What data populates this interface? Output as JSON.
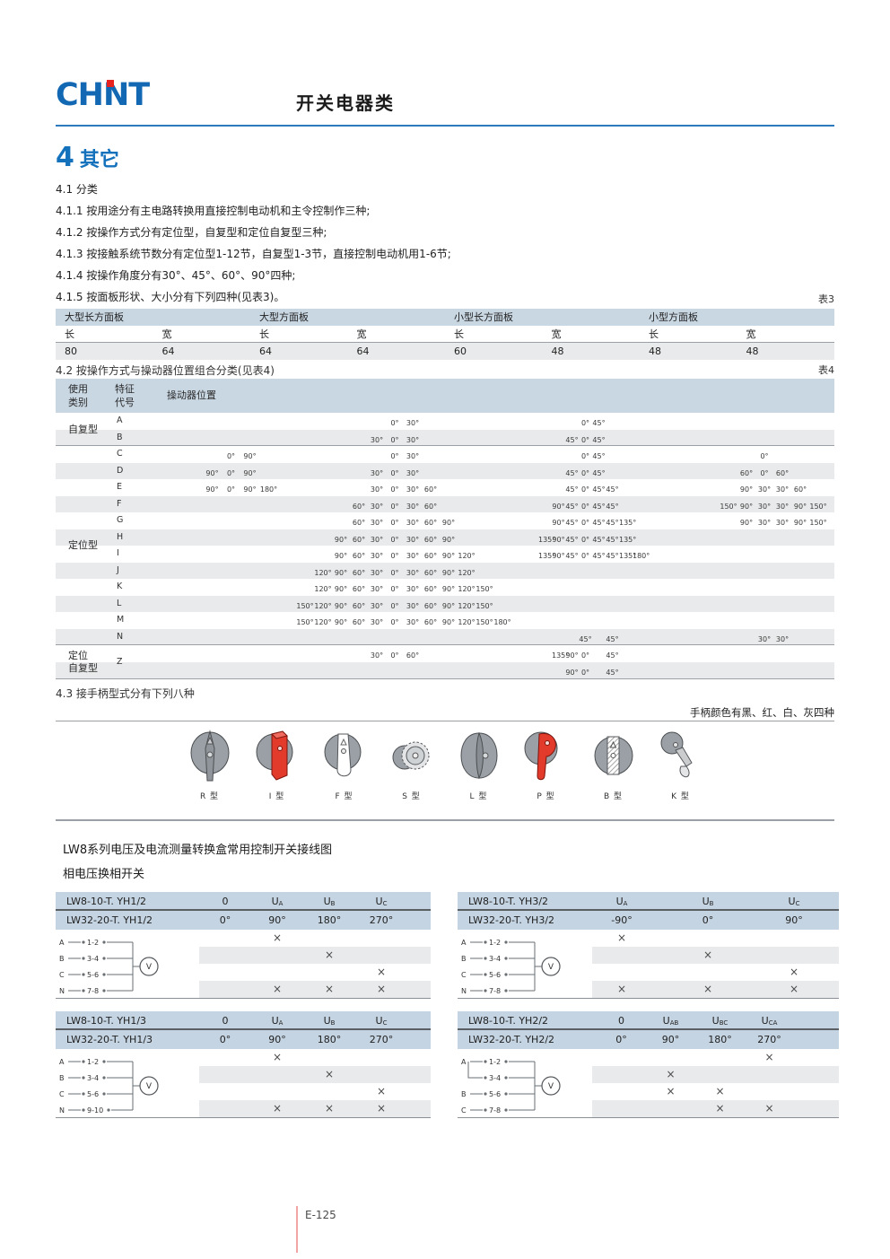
{
  "brand": {
    "logo_text": "CHNT"
  },
  "header": {
    "title": "开关电器类"
  },
  "section": {
    "number": "4",
    "title": "其它"
  },
  "intro": {
    "items": [
      "4.1 分类",
      "4.1.1 按用途分有主电路转换用直接控制电动机和主令控制作三种;",
      "4.1.2 按操作方式分有定位型，自复型和定位自复型三种;",
      "4.1.3 按接触系统节数分有定位型1-12节，自复型1-3节，直接控制电动机用1-6节;",
      "4.1.4 按操作角度分有30°、45°、60°、90°四种;",
      "4.1.5 按面板形状、大小分有下列四种(见表3)。"
    ]
  },
  "labels": {
    "table3_tag": "表3",
    "table4_tag": "表4",
    "sec42": "4.2 按操作方式与操动器位置组合分类(见表4)",
    "sec43": "4.3 接手柄型式分有下列八种",
    "handle_note": "手柄颜色有黑、红、白、灰四种",
    "lw8_title": "LW8系列电压及电流测量转换盒常用控制开关接线图",
    "lw8_sub": "相电压换相开关",
    "footer": "E-125"
  },
  "table3": {
    "panels": [
      "大型长方面板",
      "大型方面板",
      "小型长方面板",
      "小型方面板"
    ],
    "dims": [
      "长",
      "宽"
    ],
    "values": [
      "80",
      "64",
      "64",
      "64",
      "60",
      "48",
      "48",
      "48"
    ]
  },
  "table4": {
    "header": {
      "cat": [
        "使用",
        "类别"
      ],
      "code": [
        "特征",
        "代号"
      ],
      "pos": "操动器位置"
    },
    "rows": [
      {
        "code": "A",
        "g2": [
          "",
          "",
          "",
          "",
          "",
          "0°",
          "30°",
          "",
          "",
          "",
          "",
          ""
        ],
        "g3": [
          "",
          "",
          "",
          "0°",
          "45°",
          "",
          "",
          ""
        ]
      },
      {
        "code": "B",
        "g2": [
          "",
          "",
          "",
          "",
          "30°",
          "0°",
          "30°",
          "",
          "",
          "",
          "",
          ""
        ],
        "g3": [
          "",
          "",
          "45°",
          "0°",
          "45°",
          "",
          "",
          ""
        ]
      },
      {
        "code": "C",
        "g1": [
          "",
          "0°",
          "90°",
          ""
        ],
        "g2": [
          "",
          "",
          "",
          "",
          "",
          "0°",
          "30°",
          "",
          "",
          "",
          "",
          ""
        ],
        "g3": [
          "",
          "",
          "",
          "0°",
          "45°",
          "",
          "",
          ""
        ],
        "g4": [
          "",
          "",
          "0°",
          "",
          "",
          ""
        ]
      },
      {
        "code": "D",
        "g1": [
          "90°",
          "0°",
          "90°",
          ""
        ],
        "g2": [
          "",
          "",
          "",
          "",
          "30°",
          "0°",
          "30°",
          "",
          "",
          "",
          "",
          ""
        ],
        "g3": [
          "",
          "",
          "45°",
          "0°",
          "45°",
          "",
          "",
          ""
        ],
        "g4": [
          "",
          "60°",
          "0°",
          "60°",
          "",
          ""
        ]
      },
      {
        "code": "E",
        "g1": [
          "90°",
          "0°",
          "90°",
          "180°"
        ],
        "g2": [
          "",
          "",
          "",
          "",
          "30°",
          "0°",
          "30°",
          "60°",
          "",
          "",
          "",
          ""
        ],
        "g3": [
          "",
          "",
          "45°",
          "0°",
          "45°",
          "45°",
          "",
          ""
        ],
        "g4": [
          "",
          "90°",
          "30°",
          "30°",
          "60°",
          ""
        ]
      },
      {
        "code": "F",
        "g2": [
          "",
          "",
          "",
          "60°",
          "30°",
          "0°",
          "30°",
          "60°",
          "",
          "",
          "",
          ""
        ],
        "g3": [
          "",
          "90°",
          "45°",
          "0°",
          "45°",
          "45°",
          "",
          ""
        ],
        "g4": [
          "150°",
          "90°",
          "30°",
          "30°",
          "90°",
          "150°"
        ]
      },
      {
        "code": "G",
        "g2": [
          "",
          "",
          "",
          "60°",
          "30°",
          "0°",
          "30°",
          "60°",
          "90°",
          "",
          "",
          ""
        ],
        "g3": [
          "",
          "90°",
          "45°",
          "0°",
          "45°",
          "45°",
          "135°",
          ""
        ],
        "g4": [
          "",
          "90°",
          "30°",
          "30°",
          "90°",
          "150°"
        ]
      },
      {
        "code": "H",
        "g2": [
          "",
          "",
          "90°",
          "60°",
          "30°",
          "0°",
          "30°",
          "60°",
          "90°",
          "",
          "",
          ""
        ],
        "g3": [
          "135°",
          "90°",
          "45°",
          "0°",
          "45°",
          "45°",
          "135°",
          ""
        ]
      },
      {
        "code": "I",
        "g2": [
          "",
          "",
          "90°",
          "60°",
          "30°",
          "0°",
          "30°",
          "60°",
          "90°",
          "120°",
          "",
          ""
        ],
        "g3": [
          "135°",
          "90°",
          "45°",
          "0°",
          "45°",
          "45°",
          "135°",
          "180°"
        ]
      },
      {
        "code": "J",
        "g2": [
          "",
          "120°",
          "90°",
          "60°",
          "30°",
          "0°",
          "30°",
          "60°",
          "90°",
          "120°",
          "",
          ""
        ]
      },
      {
        "code": "K",
        "g2": [
          "",
          "120°",
          "90°",
          "60°",
          "30°",
          "0°",
          "30°",
          "60°",
          "90°",
          "120°",
          "150°",
          ""
        ]
      },
      {
        "code": "L",
        "g2": [
          "150°",
          "120°",
          "90°",
          "60°",
          "30°",
          "0°",
          "30°",
          "60°",
          "90°",
          "120°",
          "150°",
          ""
        ]
      },
      {
        "code": "M",
        "g2": [
          "150°",
          "120°",
          "90°",
          "60°",
          "30°",
          "0°",
          "30°",
          "60°",
          "90°",
          "120°",
          "150°",
          "180°"
        ]
      },
      {
        "code": "N",
        "g3": [
          "",
          "",
          "",
          "45°",
          "",
          "45°",
          "",
          ""
        ],
        "g4": [
          "",
          "",
          "30°",
          "30°",
          "",
          ""
        ]
      },
      {
        "code": "",
        "g2": [
          "",
          "",
          "",
          "",
          "30°",
          "0°",
          "60°",
          "",
          "",
          "",
          "",
          ""
        ],
        "g3": [
          "",
          "135°",
          "90°",
          "0°",
          "",
          "45°",
          "",
          ""
        ]
      },
      {
        "code": "",
        "g3": [
          "",
          "",
          "90°",
          "0°",
          "",
          "45°",
          "",
          ""
        ]
      }
    ],
    "rules_after": [
      1,
      13
    ],
    "categories": [
      {
        "lines": [
          "自复型"
        ],
        "from": 0,
        "to": 1
      },
      {
        "lines": [
          "定位型"
        ],
        "from": 2,
        "to": 13
      },
      {
        "lines": [
          "定位",
          "自复型"
        ],
        "from": 14,
        "to": 15
      }
    ],
    "span_code": {
      "label": "Z",
      "from": 14,
      "to": 15
    }
  },
  "handles": {
    "items": [
      {
        "type": "R",
        "label": "R 型"
      },
      {
        "type": "I",
        "label": "I 型"
      },
      {
        "type": "F",
        "label": "F 型"
      },
      {
        "type": "S",
        "label": "S 型"
      },
      {
        "type": "L",
        "label": "L 型"
      },
      {
        "type": "P",
        "label": "P 型"
      },
      {
        "type": "B",
        "label": "B 型"
      },
      {
        "type": "K",
        "label": "K 型"
      }
    ]
  },
  "wiring": {
    "tables": [
      {
        "id": "tl",
        "model1": "LW8-10-T. YH1/2",
        "model2": "LW32-20-T. YH1/2",
        "cols1": [
          {
            "t": "0"
          },
          {
            "t": "U",
            "s": "A"
          },
          {
            "t": "U",
            "s": "B"
          },
          {
            "t": "U",
            "s": "C"
          }
        ],
        "cols2": [
          "0°",
          "90°",
          "180°",
          "270°"
        ],
        "marks": [
          [
            0,
            1,
            0,
            0
          ],
          [
            0,
            0,
            1,
            0
          ],
          [
            0,
            0,
            0,
            1
          ],
          [
            0,
            1,
            1,
            1
          ]
        ],
        "diagram": {
          "variant": "std",
          "meter": "V",
          "rows": [
            {
              "p": "A",
              "t": "1-2"
            },
            {
              "p": "B",
              "t": "3-4"
            },
            {
              "p": "C",
              "t": "5-6"
            },
            {
              "p": "N",
              "t": "7-8"
            }
          ]
        }
      },
      {
        "id": "tr",
        "model1": "LW8-10-T. YH3/2",
        "model2": "LW32-20-T. YH3/2",
        "cols1": [
          {
            "t": "U",
            "s": "A"
          },
          {
            "t": "U",
            "s": "B"
          },
          {
            "t": "U",
            "s": "C"
          }
        ],
        "cols2": [
          "-90°",
          "0°",
          "90°"
        ],
        "marks": [
          [
            1,
            0,
            0
          ],
          [
            0,
            1,
            0
          ],
          [
            0,
            0,
            1
          ],
          [
            1,
            1,
            1
          ]
        ],
        "diagram": {
          "variant": "std",
          "meter": "V",
          "rows": [
            {
              "p": "A",
              "t": "1-2"
            },
            {
              "p": "B",
              "t": "3-4"
            },
            {
              "p": "C",
              "t": "5-6"
            },
            {
              "p": "N",
              "t": "7-8"
            }
          ]
        }
      },
      {
        "id": "bl",
        "model1": "LW8-10-T. YH1/3",
        "model2": "LW32-20-T. YH1/3",
        "cols1": [
          {
            "t": "0"
          },
          {
            "t": "U",
            "s": "A"
          },
          {
            "t": "U",
            "s": "B"
          },
          {
            "t": "U",
            "s": "C"
          }
        ],
        "cols2": [
          "0°",
          "90°",
          "180°",
          "270°"
        ],
        "marks": [
          [
            0,
            1,
            0,
            0
          ],
          [
            0,
            0,
            1,
            0
          ],
          [
            0,
            0,
            0,
            1
          ],
          [
            0,
            1,
            1,
            1
          ]
        ],
        "diagram": {
          "variant": "std",
          "meter": "V",
          "rows": [
            {
              "p": "A",
              "t": "1-2"
            },
            {
              "p": "B",
              "t": "3-4"
            },
            {
              "p": "C",
              "t": "5-6"
            },
            {
              "p": "N",
              "t": "9-10"
            }
          ]
        }
      },
      {
        "id": "br",
        "model1": "LW8-10-T. YH2/2",
        "model2": "LW32-20-T. YH2/2",
        "cols1": [
          {
            "t": "0"
          },
          {
            "t": "U",
            "s": "AB"
          },
          {
            "t": "U",
            "s": "BC"
          },
          {
            "t": "U",
            "s": "CA"
          }
        ],
        "cols2": [
          "0°",
          "90°",
          "180°",
          "270°"
        ],
        "marks": [
          [
            0,
            0,
            0,
            1
          ],
          [
            0,
            1,
            0,
            0
          ],
          [
            0,
            1,
            1,
            0
          ],
          [
            0,
            0,
            1,
            1
          ]
        ],
        "diagram": {
          "variant": "split",
          "meter": "V",
          "rows": [
            {
              "p": "A",
              "t": "1-2"
            },
            {
              "p": "",
              "t": "3-4"
            },
            {
              "p": "B",
              "t": "5-6"
            },
            {
              "p": "C",
              "t": "7-8"
            }
          ]
        }
      }
    ]
  },
  "colors": {
    "brand_blue": "#1268b3",
    "brand_red": "#e8231f",
    "rule_blue": "#2b7bbd",
    "table_header_bg": "#c9d7e3",
    "wiring_header_bg": "#c5d4e2",
    "alt_row_bg": "#e9eaeb",
    "footer_line": "#f2a6a4"
  }
}
